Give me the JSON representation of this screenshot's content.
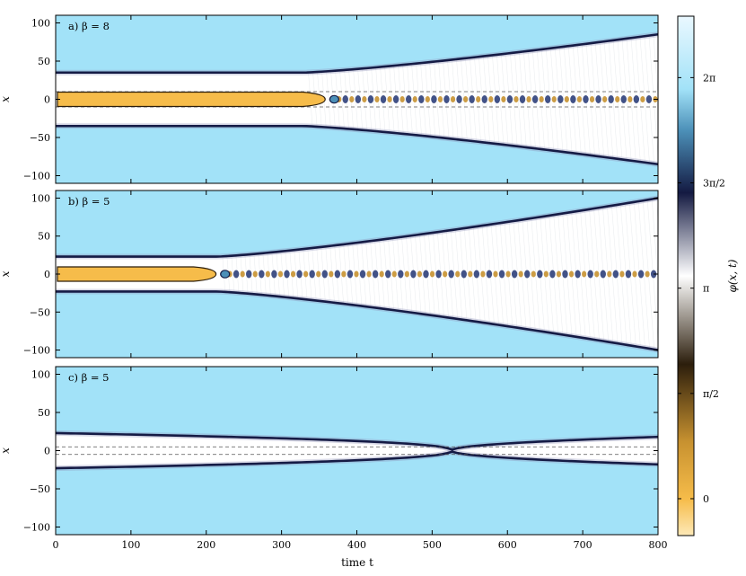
{
  "chart_data": {
    "type": "heatmap",
    "xlabel": "time t",
    "ylabel": "x",
    "xlim": [
      0,
      800
    ],
    "ylim": [
      -110,
      110
    ],
    "xticks": [
      0,
      100,
      200,
      300,
      400,
      500,
      600,
      700,
      800
    ],
    "yticks": [
      100,
      50,
      0,
      -50,
      -100
    ],
    "panels": [
      {
        "label": "a) β = 8",
        "kink_half_width_initial": 35,
        "kink_spread_start_t": 330,
        "kink_half_width_final": 85,
        "core_end_t": 358,
        "dashed_lines_x": [
          10,
          -10
        ],
        "breather_end_t": 800
      },
      {
        "label": "b) β = 5",
        "kink_half_width_initial": 23,
        "kink_spread_start_t": 215,
        "kink_half_width_final": 100,
        "core_end_t": 213,
        "dashed_lines_x": [],
        "breather_end_t": 800
      },
      {
        "label": "c) β = 5",
        "kink_half_width_initial": 23,
        "kink_collapse_t": 525,
        "kink_half_width_final": 18,
        "dashed_lines_x": [
          5,
          -5
        ],
        "breather_end_t": 0
      }
    ],
    "colorbar": {
      "label": "φ(x, t)",
      "range": [
        -0.55,
        7.2
      ],
      "ticks": [
        {
          "value": 0,
          "label": "0"
        },
        {
          "value": 1.5708,
          "label": "π/2"
        },
        {
          "value": 3.1416,
          "label": "π"
        },
        {
          "value": 4.7124,
          "label": "3π/2"
        },
        {
          "value": 6.2832,
          "label": "2π"
        }
      ],
      "colors": [
        {
          "value": 0,
          "color": "#fde9b8"
        },
        {
          "value": 0.07,
          "color": "#f6bc4a"
        },
        {
          "value": 0.18,
          "color": "#c89230"
        },
        {
          "value": 0.33,
          "color": "#2c1e0c"
        },
        {
          "value": 0.5,
          "color": "#ffffff"
        },
        {
          "value": 0.66,
          "color": "#141a42"
        },
        {
          "value": 0.78,
          "color": "#4c90b8"
        },
        {
          "value": 0.86,
          "color": "#a2e2f8"
        },
        {
          "value": 1,
          "color": "#eaf8ff"
        }
      ]
    },
    "colors": {
      "background": "#a2e2f8",
      "interior": "#ffffff",
      "kink": "#151b45",
      "core": "#f6bc4a",
      "core_edge": "#2c1e0c"
    }
  }
}
